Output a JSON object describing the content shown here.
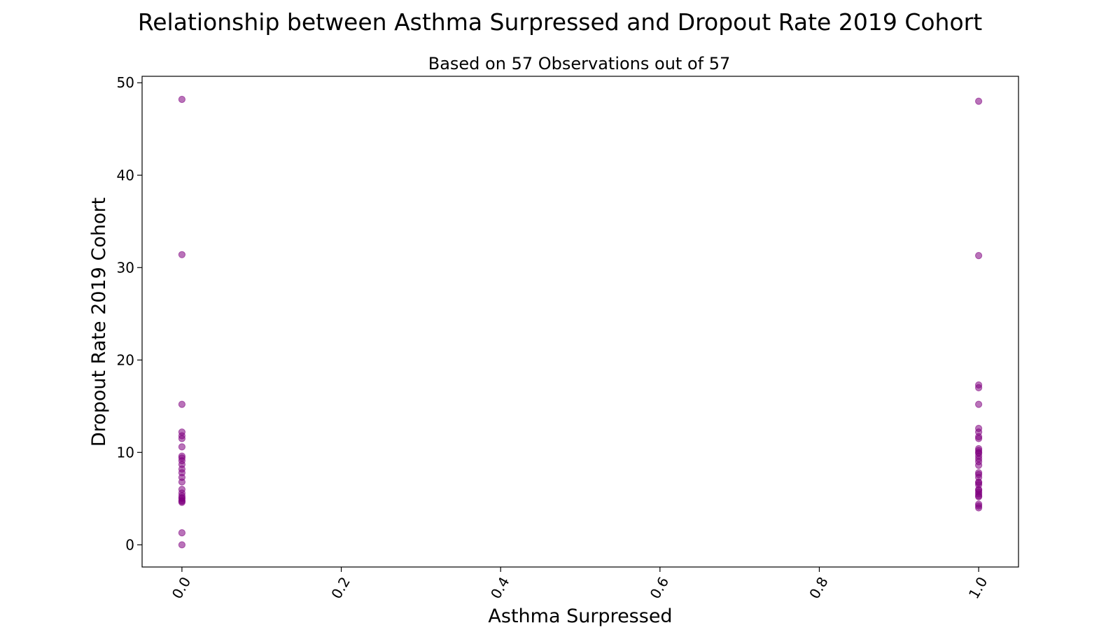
{
  "chart_data": {
    "type": "scatter",
    "title": "Relationship between Asthma Surpressed and Dropout Rate 2019 Cohort",
    "subtitle": "Based on 57 Observations out of 57",
    "xlabel": "Asthma Surpressed",
    "ylabel": "Dropout Rate 2019 Cohort",
    "xlim": [
      -0.05,
      1.05
    ],
    "ylim": [
      -2.4,
      50.7
    ],
    "x_ticks": [
      "0.0",
      "0.2",
      "0.4",
      "0.6",
      "0.8",
      "1.0"
    ],
    "x_tick_values": [
      0.0,
      0.2,
      0.4,
      0.6,
      0.8,
      1.0
    ],
    "y_ticks": [
      "0",
      "10",
      "20",
      "30",
      "40",
      "50"
    ],
    "y_tick_values": [
      0,
      10,
      20,
      30,
      40,
      50
    ],
    "grid": false,
    "point_color": "#800080",
    "point_alpha": 0.55,
    "x": [
      0,
      0,
      0,
      0,
      0,
      0,
      0,
      0,
      0,
      0,
      0,
      0,
      0,
      0,
      0,
      0,
      0,
      0,
      0,
      0,
      0,
      0,
      0,
      0,
      0,
      1,
      1,
      1,
      1,
      1,
      1,
      1,
      1,
      1,
      1,
      1,
      1,
      1,
      1,
      1,
      1,
      1,
      1,
      1,
      1,
      1,
      1,
      1,
      1,
      1,
      1,
      1,
      1,
      1,
      1,
      1,
      1
    ],
    "y": [
      48.2,
      31.4,
      15.2,
      12.2,
      11.8,
      11.5,
      10.6,
      9.6,
      9.4,
      9.1,
      8.7,
      8.2,
      7.8,
      7.3,
      6.8,
      6.0,
      5.6,
      5.3,
      5.1,
      5.0,
      4.8,
      4.7,
      4.6,
      1.3,
      0.0,
      48.0,
      31.3,
      17.3,
      17.0,
      15.2,
      12.6,
      12.2,
      11.7,
      11.5,
      10.4,
      10.2,
      9.9,
      9.6,
      9.3,
      8.6,
      7.8,
      7.6,
      7.3,
      6.8,
      6.5,
      6.0,
      5.7,
      5.5,
      5.3,
      5.2,
      4.4,
      4.2,
      4.0,
      9.0,
      10.0,
      6.7,
      5.9
    ]
  }
}
